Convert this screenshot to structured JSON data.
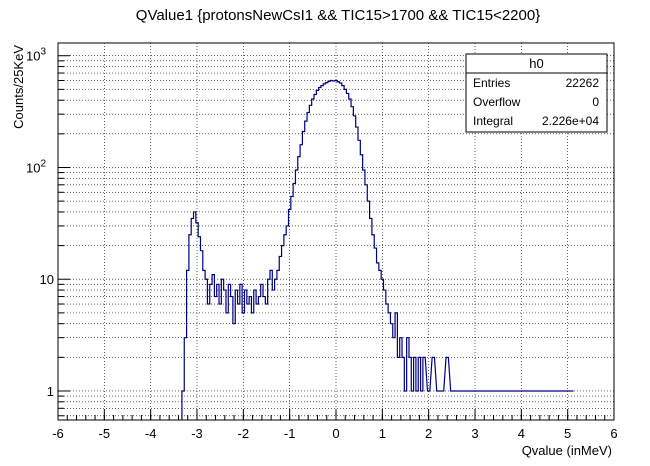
{
  "chart_data": {
    "type": "histogram",
    "title": "QValue1 {protonsNewCsI1 && TIC15>1700 && TIC15<2200}",
    "xlabel": "Qvalue (inMeV)",
    "ylabel": "Counts/25KeV",
    "xlim": [
      -6,
      6
    ],
    "ylim": [
      0.55,
      1300
    ],
    "yscale": "log",
    "grid": true,
    "line_color": "#000080",
    "x_ticks": [
      "-6",
      "-5",
      "-4",
      "-3",
      "-2",
      "-1",
      "0",
      "1",
      "2",
      "3",
      "4",
      "5",
      "6"
    ],
    "y_ticks": [
      {
        "value": 1,
        "label": "1"
      },
      {
        "value": 10,
        "label": "10"
      },
      {
        "value": 100,
        "label": "10",
        "exp": "2"
      },
      {
        "value": 1000,
        "label": "10",
        "exp": "3"
      }
    ],
    "stats": {
      "name": "h0",
      "rows": [
        {
          "label": "Entries",
          "value": "22262"
        },
        {
          "label": "Overflow",
          "value": "0"
        },
        {
          "label": "Integral",
          "value": "2.226e+04"
        }
      ]
    },
    "points": [
      [
        -3.3,
        1
      ],
      [
        -3.25,
        3
      ],
      [
        -3.2,
        12
      ],
      [
        -3.15,
        25
      ],
      [
        -3.1,
        35
      ],
      [
        -3.05,
        40
      ],
      [
        -3.0,
        32
      ],
      [
        -2.95,
        24
      ],
      [
        -2.9,
        18
      ],
      [
        -2.85,
        12
      ],
      [
        -2.8,
        10
      ],
      [
        -2.75,
        6
      ],
      [
        -2.7,
        9
      ],
      [
        -2.65,
        11
      ],
      [
        -2.6,
        7
      ],
      [
        -2.55,
        9
      ],
      [
        -2.5,
        6
      ],
      [
        -2.45,
        10
      ],
      [
        -2.4,
        8
      ],
      [
        -2.35,
        5
      ],
      [
        -2.3,
        9
      ],
      [
        -2.25,
        7
      ],
      [
        -2.2,
        4
      ],
      [
        -2.15,
        8
      ],
      [
        -2.1,
        6
      ],
      [
        -2.05,
        9
      ],
      [
        -2.0,
        5
      ],
      [
        -1.95,
        8
      ],
      [
        -1.9,
        6
      ],
      [
        -1.85,
        7
      ],
      [
        -1.8,
        5
      ],
      [
        -1.75,
        8
      ],
      [
        -1.7,
        6
      ],
      [
        -1.65,
        7
      ],
      [
        -1.6,
        9
      ],
      [
        -1.55,
        7
      ],
      [
        -1.5,
        6
      ],
      [
        -1.45,
        10
      ],
      [
        -1.4,
        12
      ],
      [
        -1.35,
        8
      ],
      [
        -1.3,
        10
      ],
      [
        -1.25,
        12
      ],
      [
        -1.2,
        16
      ],
      [
        -1.15,
        20
      ],
      [
        -1.1,
        25
      ],
      [
        -1.05,
        30
      ],
      [
        -1.0,
        42
      ],
      [
        -0.95,
        55
      ],
      [
        -0.9,
        72
      ],
      [
        -0.85,
        95
      ],
      [
        -0.8,
        125
      ],
      [
        -0.75,
        160
      ],
      [
        -0.7,
        210
      ],
      [
        -0.65,
        260
      ],
      [
        -0.6,
        310
      ],
      [
        -0.55,
        360
      ],
      [
        -0.5,
        410
      ],
      [
        -0.45,
        450
      ],
      [
        -0.4,
        490
      ],
      [
        -0.35,
        520
      ],
      [
        -0.3,
        540
      ],
      [
        -0.25,
        560
      ],
      [
        -0.2,
        575
      ],
      [
        -0.15,
        590
      ],
      [
        -0.1,
        600
      ],
      [
        -0.05,
        595
      ],
      [
        0.0,
        600
      ],
      [
        0.05,
        585
      ],
      [
        0.1,
        570
      ],
      [
        0.15,
        540
      ],
      [
        0.2,
        500
      ],
      [
        0.25,
        460
      ],
      [
        0.3,
        410
      ],
      [
        0.35,
        350
      ],
      [
        0.4,
        290
      ],
      [
        0.45,
        230
      ],
      [
        0.5,
        175
      ],
      [
        0.55,
        130
      ],
      [
        0.6,
        95
      ],
      [
        0.65,
        70
      ],
      [
        0.7,
        50
      ],
      [
        0.75,
        35
      ],
      [
        0.8,
        25
      ],
      [
        0.85,
        19
      ],
      [
        0.9,
        14
      ],
      [
        0.95,
        12
      ],
      [
        1.0,
        10
      ],
      [
        1.05,
        8
      ],
      [
        1.1,
        6
      ],
      [
        1.15,
        5
      ],
      [
        1.2,
        4
      ],
      [
        1.25,
        3
      ],
      [
        1.3,
        5
      ],
      [
        1.35,
        2
      ],
      [
        1.4,
        3
      ],
      [
        1.45,
        2
      ],
      [
        1.5,
        1
      ],
      [
        1.55,
        3
      ],
      [
        1.6,
        2
      ],
      [
        1.65,
        1
      ],
      [
        1.7,
        2
      ],
      [
        1.75,
        1
      ],
      [
        1.8,
        2
      ],
      [
        1.85,
        1
      ],
      [
        1.9,
        2
      ],
      [
        2.0,
        1
      ],
      [
        2.1,
        2
      ],
      [
        2.2,
        1
      ],
      [
        2.3,
        1
      ],
      [
        2.4,
        2
      ],
      [
        2.5,
        1
      ],
      [
        2.7,
        1
      ],
      [
        2.9,
        1
      ],
      [
        3.1,
        1
      ],
      [
        3.4,
        1
      ],
      [
        3.7,
        1
      ],
      [
        4.0,
        1
      ],
      [
        4.3,
        1
      ],
      [
        4.6,
        1
      ],
      [
        5.1,
        1
      ]
    ]
  }
}
